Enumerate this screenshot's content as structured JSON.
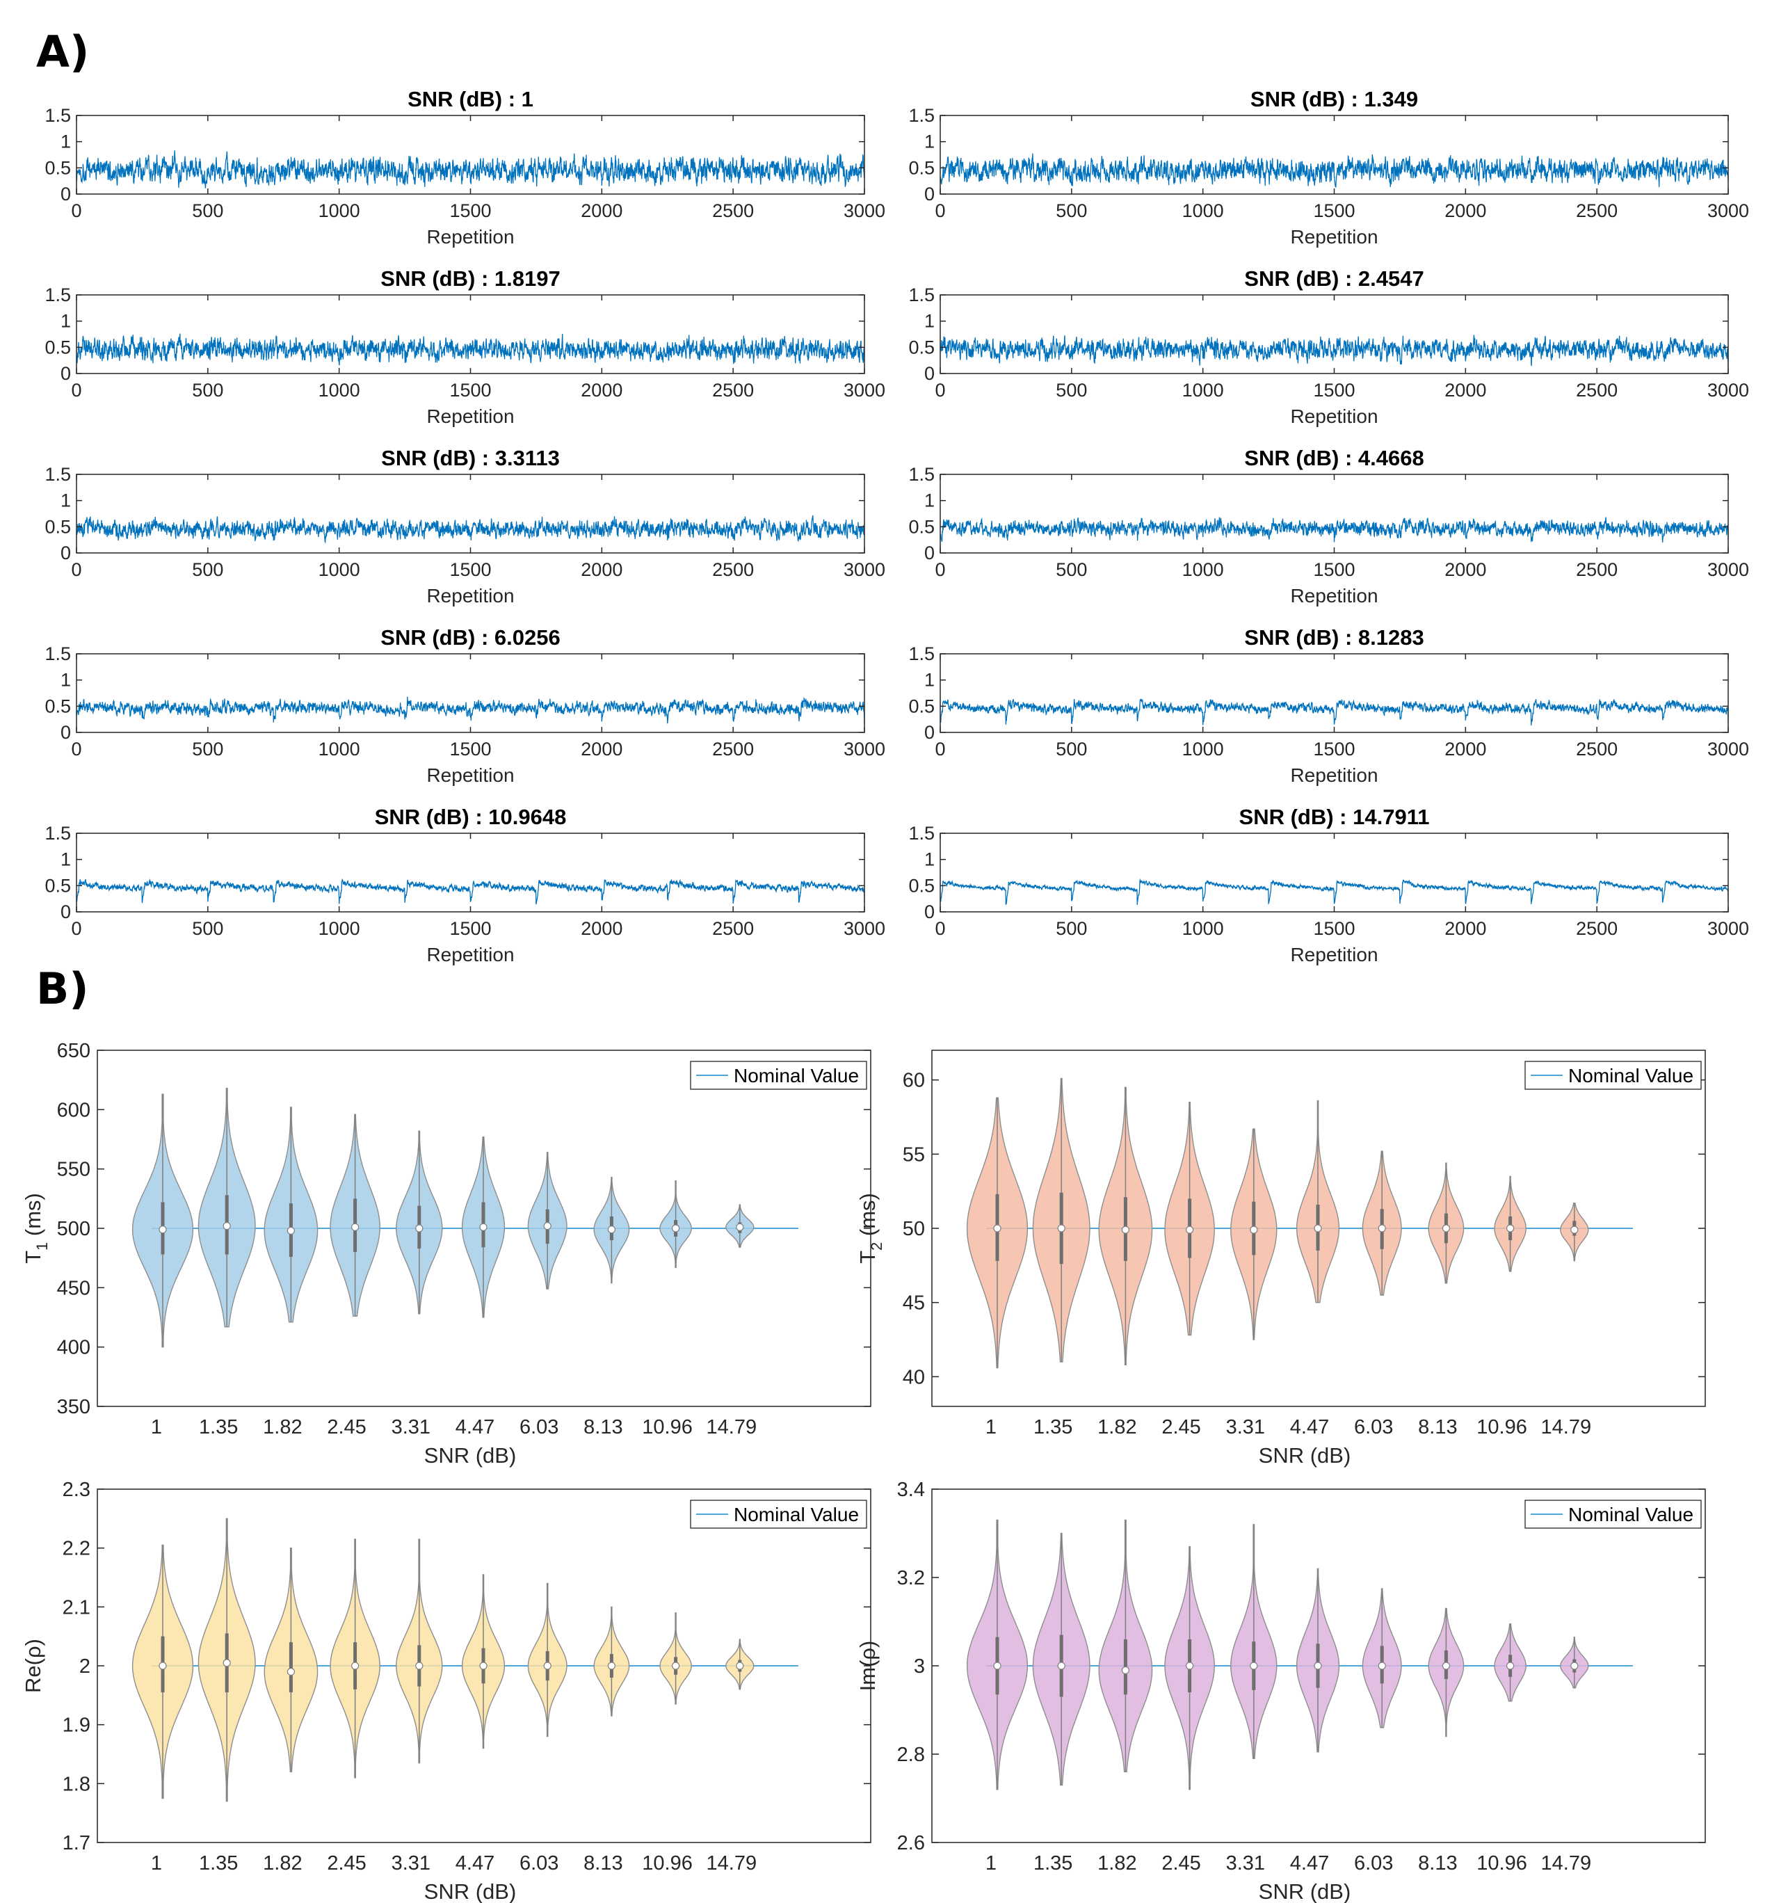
{
  "panel_labels": {
    "a": "A)",
    "b": "B)"
  },
  "chart_data": [
    {
      "type": "line",
      "title": "SNR (dB) : 1",
      "xlabel": "Repetition",
      "ylabel": "",
      "xlim": [
        0,
        3000
      ],
      "ylim": [
        0,
        1.5
      ],
      "xticks": [
        0,
        500,
        1000,
        1500,
        2000,
        2500,
        3000
      ],
      "yticks": [
        0,
        0.5,
        1,
        1.5
      ],
      "n_points": 3000,
      "mean": 0.45,
      "noise_sd": 0.17,
      "signal_scale": 0.25,
      "color": "#0072BD",
      "grid": false
    },
    {
      "type": "line",
      "title": "SNR (dB) : 1.349",
      "xlabel": "Repetition",
      "ylabel": "",
      "xlim": [
        0,
        3000
      ],
      "ylim": [
        0,
        1.5
      ],
      "xticks": [
        0,
        500,
        1000,
        1500,
        2000,
        2500,
        3000
      ],
      "yticks": [
        0,
        0.5,
        1,
        1.5
      ],
      "n_points": 3000,
      "mean": 0.45,
      "noise_sd": 0.16,
      "signal_scale": 0.27,
      "color": "#0072BD",
      "grid": false
    },
    {
      "type": "line",
      "title": "SNR (dB) : 1.8197",
      "xlabel": "Repetition",
      "ylabel": "",
      "xlim": [
        0,
        3000
      ],
      "ylim": [
        0,
        1.5
      ],
      "xticks": [
        0,
        500,
        1000,
        1500,
        2000,
        2500,
        3000
      ],
      "yticks": [
        0,
        0.5,
        1,
        1.5
      ],
      "n_points": 3000,
      "mean": 0.45,
      "noise_sd": 0.15,
      "signal_scale": 0.3,
      "color": "#0072BD",
      "grid": false
    },
    {
      "type": "line",
      "title": "SNR (dB) : 2.4547",
      "xlabel": "Repetition",
      "ylabel": "",
      "xlim": [
        0,
        3000
      ],
      "ylim": [
        0,
        1.5
      ],
      "xticks": [
        0,
        500,
        1000,
        1500,
        2000,
        2500,
        3000
      ],
      "yticks": [
        0,
        0.5,
        1,
        1.5
      ],
      "n_points": 3000,
      "mean": 0.45,
      "noise_sd": 0.14,
      "signal_scale": 0.35,
      "color": "#0072BD",
      "grid": false
    },
    {
      "type": "line",
      "title": "SNR (dB) : 3.3113",
      "xlabel": "Repetition",
      "ylabel": "",
      "xlim": [
        0,
        3000
      ],
      "ylim": [
        0,
        1.5
      ],
      "xticks": [
        0,
        500,
        1000,
        1500,
        2000,
        2500,
        3000
      ],
      "yticks": [
        0,
        0.5,
        1,
        1.5
      ],
      "n_points": 3000,
      "mean": 0.45,
      "noise_sd": 0.12,
      "signal_scale": 0.45,
      "color": "#0072BD",
      "grid": false
    },
    {
      "type": "line",
      "title": "SNR (dB) : 4.4668",
      "xlabel": "Repetition",
      "ylabel": "",
      "xlim": [
        0,
        3000
      ],
      "ylim": [
        0,
        1.5
      ],
      "xticks": [
        0,
        500,
        1000,
        1500,
        2000,
        2500,
        3000
      ],
      "yticks": [
        0,
        0.5,
        1,
        1.5
      ],
      "n_points": 3000,
      "mean": 0.45,
      "noise_sd": 0.105,
      "signal_scale": 0.55,
      "color": "#0072BD",
      "grid": false
    },
    {
      "type": "line",
      "title": "SNR (dB) : 6.0256",
      "xlabel": "Repetition",
      "ylabel": "",
      "xlim": [
        0,
        3000
      ],
      "ylim": [
        0,
        1.5
      ],
      "xticks": [
        0,
        500,
        1000,
        1500,
        2000,
        2500,
        3000
      ],
      "yticks": [
        0,
        0.5,
        1,
        1.5
      ],
      "n_points": 3000,
      "mean": 0.45,
      "noise_sd": 0.085,
      "signal_scale": 0.65,
      "color": "#0072BD",
      "grid": false
    },
    {
      "type": "line",
      "title": "SNR (dB) : 8.1283",
      "xlabel": "Repetition",
      "ylabel": "",
      "xlim": [
        0,
        3000
      ],
      "ylim": [
        0,
        1.5
      ],
      "xticks": [
        0,
        500,
        1000,
        1500,
        2000,
        2500,
        3000
      ],
      "yticks": [
        0,
        0.5,
        1,
        1.5
      ],
      "n_points": 3000,
      "mean": 0.45,
      "noise_sd": 0.065,
      "signal_scale": 0.8,
      "color": "#0072BD",
      "grid": false
    },
    {
      "type": "line",
      "title": "SNR (dB) : 10.9648",
      "xlabel": "Repetition",
      "ylabel": "",
      "xlim": [
        0,
        3000
      ],
      "ylim": [
        0,
        1.5
      ],
      "xticks": [
        0,
        500,
        1000,
        1500,
        2000,
        2500,
        3000
      ],
      "yticks": [
        0,
        0.5,
        1,
        1.5
      ],
      "n_points": 3000,
      "mean": 0.45,
      "noise_sd": 0.045,
      "signal_scale": 0.9,
      "color": "#0072BD",
      "grid": false
    },
    {
      "type": "line",
      "title": "SNR (dB) : 14.7911",
      "xlabel": "Repetition",
      "ylabel": "",
      "xlim": [
        0,
        3000
      ],
      "ylim": [
        0,
        1.5
      ],
      "xticks": [
        0,
        500,
        1000,
        1500,
        2000,
        2500,
        3000
      ],
      "yticks": [
        0,
        0.5,
        1,
        1.5
      ],
      "n_points": 3000,
      "mean": 0.45,
      "noise_sd": 0.028,
      "signal_scale": 1.0,
      "color": "#0072BD",
      "grid": false
    },
    {
      "type": "violin",
      "title": "",
      "xlabel": "SNR (dB)",
      "ylabel": "T1 (ms)",
      "ylabel_main": "T",
      "ylabel_sub": "1",
      "ylabel_unit": " (ms)",
      "categories": [
        "1",
        "1.35",
        "1.82",
        "2.45",
        "3.31",
        "4.47",
        "6.03",
        "8.13",
        "10.96",
        "14.79"
      ],
      "ylim": [
        350,
        650
      ],
      "yticks": [
        350,
        400,
        450,
        500,
        550,
        600,
        650
      ],
      "nominal": 500,
      "medians": [
        499,
        502,
        498,
        501,
        500,
        501,
        502,
        499,
        500,
        501
      ],
      "q1": [
        478,
        478,
        476,
        480,
        483,
        484,
        487,
        490,
        493,
        496
      ],
      "q3": [
        522,
        528,
        521,
        525,
        519,
        522,
        516,
        510,
        507,
        505
      ],
      "mins": [
        400,
        417,
        421,
        426,
        428,
        425,
        449,
        454,
        467,
        484
      ],
      "maxs": [
        613,
        618,
        602,
        596,
        582,
        577,
        564,
        543,
        540,
        520
      ],
      "fill": "#A6CEE9",
      "edge": "#8E8E8E",
      "legend": "Nominal Value",
      "legend_position": "top-right",
      "line_color": "#4DA6DC"
    },
    {
      "type": "violin",
      "title": "",
      "xlabel": "SNR (dB)",
      "ylabel": "T2 (ms)",
      "ylabel_main": "T",
      "ylabel_sub": "2",
      "ylabel_unit": " (ms)",
      "categories": [
        "1",
        "1.35",
        "1.82",
        "2.45",
        "3.31",
        "4.47",
        "6.03",
        "8.13",
        "10.96",
        "14.79"
      ],
      "ylim": [
        38,
        62
      ],
      "yticks": [
        40,
        45,
        50,
        55,
        60
      ],
      "nominal": 50,
      "medians": [
        50,
        50,
        49.9,
        49.9,
        49.9,
        50,
        50,
        50,
        50,
        49.9
      ],
      "q1": [
        47.8,
        47.6,
        47.8,
        48,
        48.2,
        48.5,
        48.6,
        49,
        49.2,
        49.5
      ],
      "q3": [
        52.3,
        52.4,
        52.1,
        52,
        51.8,
        51.6,
        51.3,
        51,
        50.8,
        50.5
      ],
      "mins": [
        40.6,
        41,
        40.8,
        42.8,
        42.5,
        45,
        45.5,
        46.3,
        47.1,
        47.8
      ],
      "maxs": [
        58.8,
        60.1,
        59.5,
        58.5,
        56.7,
        58.6,
        55.2,
        54.4,
        53.5,
        51.7
      ],
      "fill": "#F5BCA6",
      "edge": "#8E8E8E",
      "legend": "Nominal Value",
      "legend_position": "top-right",
      "line_color": "#4DA6DC"
    },
    {
      "type": "violin",
      "title": "",
      "xlabel": "SNR (dB)",
      "ylabel": "Re(ρ)",
      "ylabel_main": "Re(ρ)",
      "ylabel_sub": "",
      "ylabel_unit": "",
      "categories": [
        "1",
        "1.35",
        "1.82",
        "2.45",
        "3.31",
        "4.47",
        "6.03",
        "8.13",
        "10.96",
        "14.79"
      ],
      "ylim": [
        1.7,
        2.3
      ],
      "yticks": [
        1.7,
        1.8,
        1.9,
        2,
        2.1,
        2.2,
        2.3
      ],
      "nominal": 2,
      "medians": [
        2.0,
        2.005,
        1.99,
        2.0,
        2.0,
        2.0,
        2.0,
        2.0,
        2.0,
        2.0
      ],
      "q1": [
        1.955,
        1.955,
        1.955,
        1.96,
        1.965,
        1.97,
        1.975,
        1.98,
        1.985,
        1.99
      ],
      "q3": [
        2.05,
        2.055,
        2.04,
        2.04,
        2.035,
        2.03,
        2.025,
        2.02,
        2.015,
        2.01
      ],
      "mins": [
        1.775,
        1.77,
        1.82,
        1.81,
        1.835,
        1.86,
        1.88,
        1.915,
        1.935,
        1.96
      ],
      "maxs": [
        2.205,
        2.25,
        2.2,
        2.215,
        2.215,
        2.155,
        2.14,
        2.1,
        2.09,
        2.045
      ],
      "fill": "#FBE2A3",
      "edge": "#8E8E8E",
      "legend": "Nominal Value",
      "legend_position": "top-right",
      "line_color": "#4DA6DC"
    },
    {
      "type": "violin",
      "title": "",
      "xlabel": "SNR (dB)",
      "ylabel": "Im(ρ)",
      "ylabel_main": "Im(ρ)",
      "ylabel_sub": "",
      "ylabel_unit": "",
      "categories": [
        "1",
        "1.35",
        "1.82",
        "2.45",
        "3.31",
        "4.47",
        "6.03",
        "8.13",
        "10.96",
        "14.79"
      ],
      "ylim": [
        2.6,
        3.4
      ],
      "yticks": [
        2.6,
        2.8,
        3,
        3.2,
        3.4
      ],
      "nominal": 3,
      "medians": [
        3.0,
        3.0,
        2.99,
        3.0,
        3.0,
        3.0,
        3.0,
        3.0,
        3.0,
        3.0
      ],
      "q1": [
        2.935,
        2.93,
        2.935,
        2.94,
        2.945,
        2.95,
        2.96,
        2.97,
        2.975,
        2.985
      ],
      "q3": [
        3.065,
        3.07,
        3.06,
        3.06,
        3.055,
        3.05,
        3.045,
        3.035,
        3.025,
        3.015
      ],
      "mins": [
        2.72,
        2.73,
        2.76,
        2.72,
        2.79,
        2.805,
        2.86,
        2.84,
        2.92,
        2.95
      ],
      "maxs": [
        3.33,
        3.3,
        3.33,
        3.27,
        3.32,
        3.22,
        3.175,
        3.13,
        3.095,
        3.065
      ],
      "fill": "#DDB3DE",
      "edge": "#8E8E8E",
      "legend": "Nominal Value",
      "legend_position": "top-right",
      "line_color": "#4DA6DC"
    }
  ]
}
